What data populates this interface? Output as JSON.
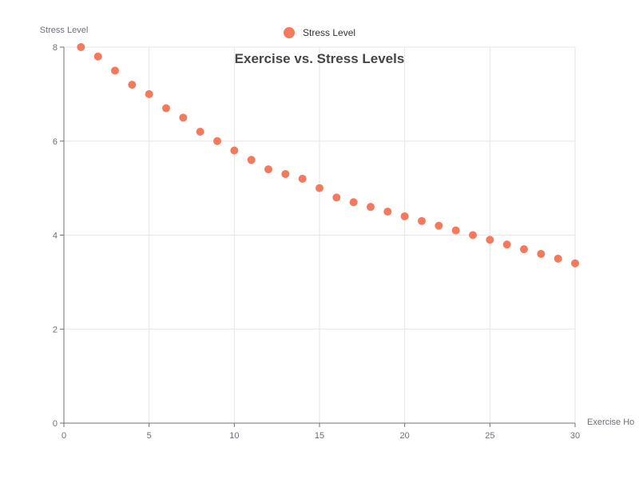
{
  "chart_data": {
    "type": "scatter",
    "title": "Exercise vs. Stress Levels",
    "xlabel": "Exercise Ho",
    "ylabel": "Stress Level",
    "xlim": [
      0,
      30
    ],
    "ylim": [
      0,
      8
    ],
    "x_ticks": [
      0,
      5,
      10,
      15,
      20,
      25,
      30
    ],
    "y_ticks": [
      0,
      2,
      4,
      6,
      8
    ],
    "grid": true,
    "legend_position": "top-center",
    "series": [
      {
        "name": "Stress Level",
        "color": "#f47a5d",
        "points": [
          [
            1,
            8.0
          ],
          [
            2,
            7.8
          ],
          [
            3,
            7.5
          ],
          [
            4,
            7.2
          ],
          [
            5,
            7.0
          ],
          [
            6,
            6.7
          ],
          [
            7,
            6.5
          ],
          [
            8,
            6.2
          ],
          [
            9,
            6.0
          ],
          [
            10,
            5.8
          ],
          [
            11,
            5.6
          ],
          [
            12,
            5.4
          ],
          [
            13,
            5.3
          ],
          [
            14,
            5.2
          ],
          [
            15,
            5.0
          ],
          [
            16,
            4.8
          ],
          [
            17,
            4.7
          ],
          [
            18,
            4.6
          ],
          [
            19,
            4.5
          ],
          [
            20,
            4.4
          ],
          [
            21,
            4.3
          ],
          [
            22,
            4.2
          ],
          [
            23,
            4.1
          ],
          [
            24,
            4.0
          ],
          [
            25,
            3.9
          ],
          [
            26,
            3.8
          ],
          [
            27,
            3.7
          ],
          [
            28,
            3.6
          ],
          [
            29,
            3.5
          ],
          [
            30,
            3.4
          ]
        ]
      }
    ]
  }
}
